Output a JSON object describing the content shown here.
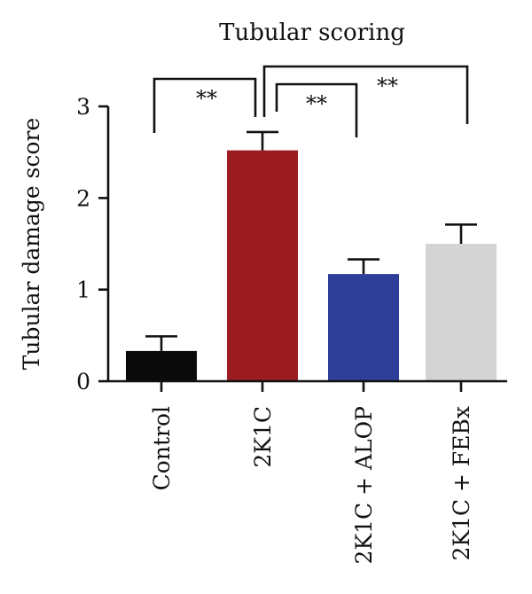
{
  "chart_data": {
    "type": "bar",
    "title": "Tubular scoring",
    "xlabel": "",
    "ylabel": "Tubular damage score",
    "ylim": [
      0,
      3
    ],
    "yticks": [
      0,
      1,
      2,
      3
    ],
    "categories": [
      "Control",
      "2K1C",
      "2K1C + ALOP",
      "2K1C + FEBx"
    ],
    "values": [
      0.33,
      2.52,
      1.17,
      1.5
    ],
    "errors": [
      0.16,
      0.2,
      0.16,
      0.21
    ],
    "colors": [
      "#0a0a0a",
      "#9b1c20",
      "#2e3f99",
      "#d4d4d4"
    ],
    "significance": [
      {
        "from": 0,
        "to": 1,
        "label": "**"
      },
      {
        "from": 1,
        "to": 2,
        "label": "**"
      },
      {
        "from": 1,
        "to": 3,
        "label": "**"
      }
    ],
    "grid": false,
    "legend": "none"
  }
}
